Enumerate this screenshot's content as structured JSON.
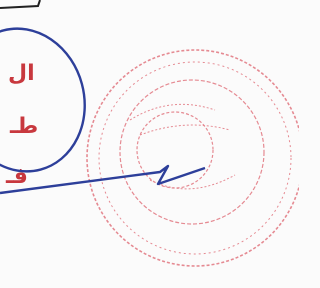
{
  "fragments": [
    "ال",
    "طـ",
    "فـ"
  ]
}
